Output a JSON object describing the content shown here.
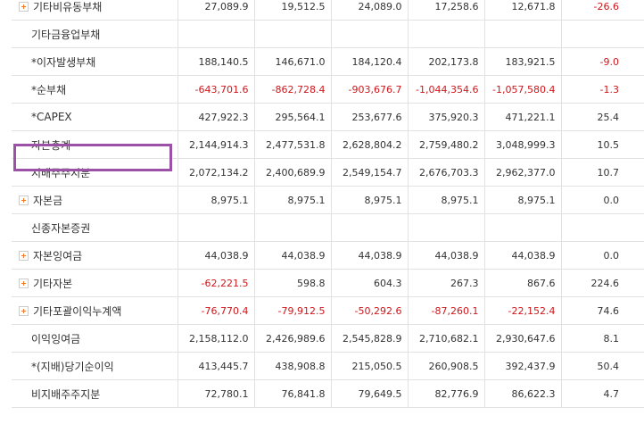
{
  "rows": [
    {
      "label": "기타비유동부채",
      "expandable": true,
      "values": [
        "27,089.9",
        "19,512.5",
        "24,089.0",
        "17,258.6",
        "12,671.8"
      ],
      "neg": [
        false,
        false,
        false,
        false,
        false
      ],
      "yoy": "-26.6",
      "yoy_neg": true
    },
    {
      "label": "기타금융업부채",
      "expandable": false,
      "values": [
        "",
        "",
        "",
        "",
        ""
      ],
      "neg": [
        false,
        false,
        false,
        false,
        false
      ],
      "yoy": "",
      "yoy_neg": false
    },
    {
      "label": "*이자발생부채",
      "expandable": false,
      "values": [
        "188,140.5",
        "146,671.0",
        "184,120.4",
        "202,173.8",
        "183,921.5"
      ],
      "neg": [
        false,
        false,
        false,
        false,
        false
      ],
      "yoy": "-9.0",
      "yoy_neg": true
    },
    {
      "label": "*순부채",
      "expandable": false,
      "values": [
        "-643,701.6",
        "-862,728.4",
        "-903,676.7",
        "-1,044,354.6",
        "-1,057,580.4"
      ],
      "neg": [
        true,
        true,
        true,
        true,
        true
      ],
      "yoy": "-1.3",
      "yoy_neg": true
    },
    {
      "label": "*CAPEX",
      "expandable": false,
      "values": [
        "427,922.3",
        "295,564.1",
        "253,677.6",
        "375,920.3",
        "471,221.1"
      ],
      "neg": [
        false,
        false,
        false,
        false,
        false
      ],
      "yoy": "25.4",
      "yoy_neg": false
    },
    {
      "label": "자본총계",
      "expandable": false,
      "values": [
        "2,144,914.3",
        "2,477,531.8",
        "2,628,804.2",
        "2,759,480.2",
        "3,048,999.3"
      ],
      "neg": [
        false,
        false,
        false,
        false,
        false
      ],
      "yoy": "10.5",
      "yoy_neg": false
    },
    {
      "label": "지배주주지분",
      "expandable": false,
      "values": [
        "2,072,134.2",
        "2,400,689.9",
        "2,549,154.7",
        "2,676,703.3",
        "2,962,377.0"
      ],
      "neg": [
        false,
        false,
        false,
        false,
        false
      ],
      "yoy": "10.7",
      "yoy_neg": false
    },
    {
      "label": "자본금",
      "expandable": true,
      "values": [
        "8,975.1",
        "8,975.1",
        "8,975.1",
        "8,975.1",
        "8,975.1"
      ],
      "neg": [
        false,
        false,
        false,
        false,
        false
      ],
      "yoy": "0.0",
      "yoy_neg": false
    },
    {
      "label": "신종자본증권",
      "expandable": false,
      "values": [
        "",
        "",
        "",
        "",
        ""
      ],
      "neg": [
        false,
        false,
        false,
        false,
        false
      ],
      "yoy": "",
      "yoy_neg": false
    },
    {
      "label": "자본잉여금",
      "expandable": true,
      "values": [
        "44,038.9",
        "44,038.9",
        "44,038.9",
        "44,038.9",
        "44,038.9"
      ],
      "neg": [
        false,
        false,
        false,
        false,
        false
      ],
      "yoy": "0.0",
      "yoy_neg": false
    },
    {
      "label": "기타자본",
      "expandable": true,
      "values": [
        "-62,221.5",
        "598.8",
        "604.3",
        "267.3",
        "867.6"
      ],
      "neg": [
        true,
        false,
        false,
        false,
        false
      ],
      "yoy": "224.6",
      "yoy_neg": false
    },
    {
      "label": "기타포괄이익누계액",
      "expandable": true,
      "values": [
        "-76,770.4",
        "-79,912.5",
        "-50,292.6",
        "-87,260.1",
        "-22,152.4"
      ],
      "neg": [
        true,
        true,
        true,
        true,
        true
      ],
      "yoy": "74.6",
      "yoy_neg": false
    },
    {
      "label": "이익잉여금",
      "expandable": false,
      "values": [
        "2,158,112.0",
        "2,426,989.6",
        "2,545,828.9",
        "2,710,682.1",
        "2,930,647.6"
      ],
      "neg": [
        false,
        false,
        false,
        false,
        false
      ],
      "yoy": "8.1",
      "yoy_neg": false
    },
    {
      "label": "*(지배)당기순이익",
      "expandable": false,
      "values": [
        "413,445.7",
        "438,908.8",
        "215,050.5",
        "260,908.5",
        "392,437.9"
      ],
      "neg": [
        false,
        false,
        false,
        false,
        false
      ],
      "yoy": "50.4",
      "yoy_neg": false
    },
    {
      "label": "비지배주주지분",
      "expandable": false,
      "values": [
        "72,780.1",
        "76,841.8",
        "79,649.5",
        "82,776.9",
        "86,622.3"
      ],
      "neg": [
        false,
        false,
        false,
        false,
        false
      ],
      "yoy": "4.7",
      "yoy_neg": false
    }
  ],
  "highlight_label": "자본총계",
  "colors": {
    "negative": "#d0161b",
    "highlight_border": "#9b51a5",
    "expand_icon": "#f07826",
    "grid": "#e2e2e2"
  }
}
